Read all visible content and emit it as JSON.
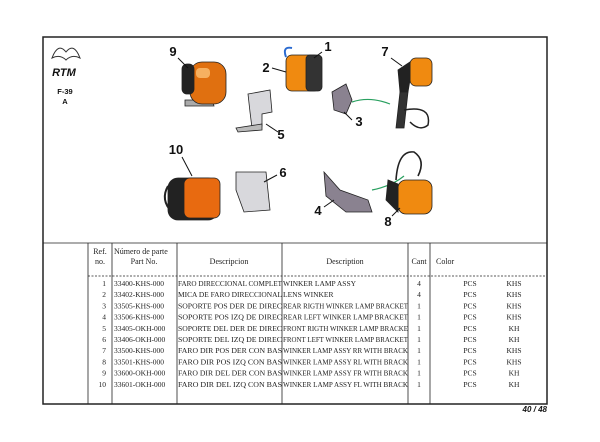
{
  "header": {
    "logo": "RTM",
    "code": "F-39",
    "sub": "A"
  },
  "callouts": [
    "1",
    "2",
    "3",
    "4",
    "5",
    "6",
    "7",
    "8",
    "9",
    "10"
  ],
  "table": {
    "headers": {
      "ref_1": "Ref.",
      "ref_2": "no.",
      "part_1": "Número de parte",
      "part_2": "Part No.",
      "desc_es": "Descripcion",
      "desc_en": "Description",
      "qty": "Cant",
      "color": "Color"
    },
    "rows": [
      [
        "1",
        "33400-KHS-000",
        "FARO DIRECCIONAL COMPLET",
        "WINKER LAMP ASSY",
        "4",
        "PCS",
        "KHS"
      ],
      [
        "2",
        "33402-KHS-000",
        "MICA DE FARO DIRECCIONAL",
        "LENS WINKER",
        "4",
        "PCS",
        "KHS"
      ],
      [
        "3",
        "33505-KHS-000",
        "SOPORTE POS DER DE DIREC",
        "REAR RIGTH WINKER LAMP BRACKET",
        "1",
        "PCS",
        "KHS"
      ],
      [
        "4",
        "33506-KHS-000",
        "SOPORTE POS IZQ DE DIREC",
        "REAR LEFT WINKER LAMP BRACKET",
        "1",
        "PCS",
        "KHS"
      ],
      [
        "5",
        "33405-OKH-000",
        "SOPORTE DEL DER DE DIREC",
        "FRONT RIGTH WINKER LAMP BRACKE",
        "1",
        "PCS",
        "KH"
      ],
      [
        "6",
        "33406-OKH-000",
        "SOPORTE DEL IZQ DE DIREC",
        "FRONT LEFT WINKER LAMP BRACKET",
        "1",
        "PCS",
        "KH"
      ],
      [
        "7",
        "33500-KHS-000",
        "FARO DIR POS DER CON BAS",
        "WINKER LAMP ASSY RR WITH BRACK",
        "1",
        "PCS",
        "KHS"
      ],
      [
        "8",
        "33501-KHS-000",
        "FARO DIR POS IZQ CON BAS",
        "WINKER LAMP ASSY RL WITH BRACK",
        "1",
        "PCS",
        "KHS"
      ],
      [
        "9",
        "33600-OKH-000",
        "FARO DIR DEL DER CON BAS",
        "WINKER LAMP ASSY FR WITH BRACK",
        "1",
        "PCS",
        "KH"
      ],
      [
        "10",
        "33601-OKH-000",
        "FARO DIR DEL IZQ CON BAS",
        "WINKER LAMP ASSY FL WITH BRACK",
        "1",
        "PCS",
        "KH"
      ]
    ]
  },
  "footer": {
    "page": "40 / 48"
  }
}
